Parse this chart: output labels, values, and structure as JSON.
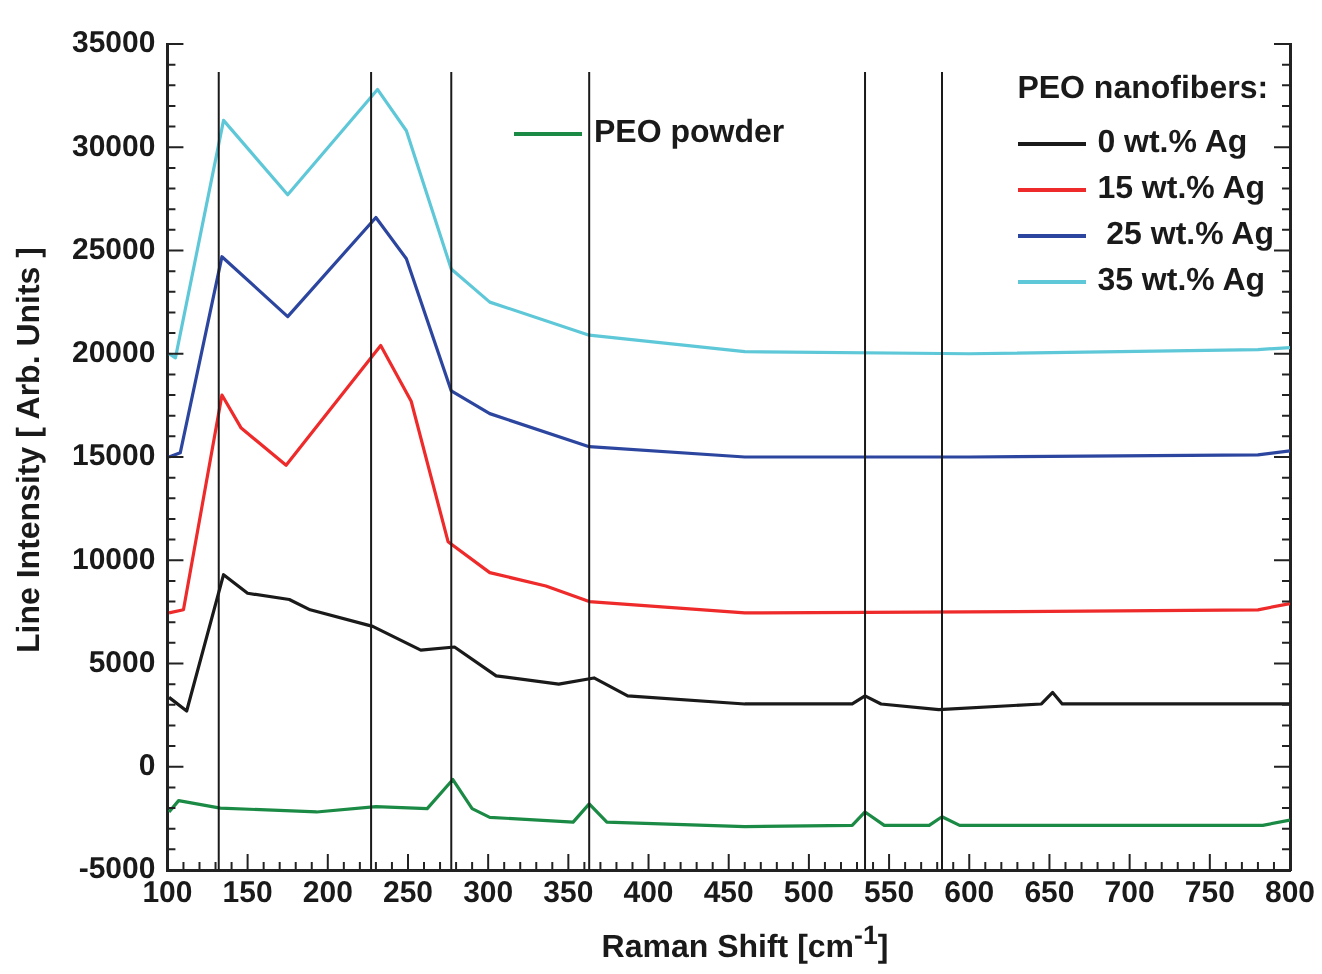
{
  "chart_data": {
    "type": "line",
    "xlabel": "Raman Shift [cm$^{-1}$]",
    "ylabel": "Line Intensity [ Arb. Units ]",
    "legend_title": "PEO nanofibers:",
    "legend": "top right",
    "grid": false,
    "marker": "none",
    "line_style": "solid",
    "xlim": [
      100,
      800
    ],
    "xticks": [
      100,
      150,
      200,
      250,
      300,
      350,
      400,
      450,
      500,
      550,
      600,
      650,
      700,
      750,
      800
    ],
    "ylim": [
      -5000,
      35000
    ],
    "yticks": [
      -5000,
      0,
      5000,
      10000,
      15000,
      20000,
      25000,
      30000,
      35000
    ],
    "series": [
      {
        "name": "PEO powder",
        "color": "#1a8a45",
        "x": [
          101,
          107,
          133,
          193,
          230,
          262,
          278,
          290,
          301,
          353,
          363,
          374,
          460,
          527,
          535,
          547,
          575,
          583,
          594,
          700,
          783,
          800
        ],
        "values": [
          -2190,
          -1640,
          -2000,
          -2190,
          -1930,
          -2030,
          -620,
          -2030,
          -2450,
          -2680,
          -1800,
          -2680,
          -2900,
          -2840,
          -2190,
          -2840,
          -2840,
          -2420,
          -2840,
          -2840,
          -2840,
          -2580
        ]
      },
      {
        "name": "0 wt.% Ag",
        "color": "#1a1a1a",
        "x": [
          101,
          112,
          135,
          150,
          176,
          189,
          228,
          258,
          279,
          305,
          344,
          366,
          387,
          460,
          527,
          535,
          545,
          581,
          645,
          652,
          658,
          800
        ],
        "values": [
          3360,
          2700,
          9300,
          8400,
          8100,
          7600,
          6800,
          5650,
          5800,
          4400,
          4000,
          4300,
          3430,
          3040,
          3040,
          3430,
          3040,
          2770,
          3040,
          3600,
          3040,
          3040
        ]
      },
      {
        "name": "15 wt.% Ag",
        "color": "#ee2a2a",
        "x": [
          101,
          110,
          134,
          146,
          174,
          233,
          252,
          275,
          301,
          336,
          363,
          460,
          600,
          780,
          800
        ],
        "values": [
          7450,
          7600,
          18000,
          16400,
          14600,
          20400,
          17700,
          10900,
          9400,
          8750,
          8000,
          7450,
          7500,
          7600,
          7900
        ]
      },
      {
        "name": " 25 wt.% Ag",
        "color": "#2c46a0",
        "x": [
          101,
          108,
          134,
          175,
          230,
          249,
          277,
          301,
          363,
          460,
          600,
          780,
          800
        ],
        "values": [
          15000,
          15200,
          24700,
          21800,
          26600,
          24600,
          18200,
          17100,
          15500,
          15000,
          15000,
          15100,
          15300
        ]
      },
      {
        "name": "35 wt.% Ag",
        "color": "#5ec8d8",
        "x": [
          101,
          105,
          135,
          175,
          231,
          249,
          277,
          301,
          363,
          460,
          600,
          780,
          800
        ],
        "values": [
          20000,
          19800,
          31300,
          27700,
          32800,
          30800,
          24100,
          22500,
          20900,
          20100,
          20000,
          20200,
          20300
        ]
      }
    ],
    "ref_lines": [
      {
        "axis": "x",
        "value": 132,
        "color": "#1a1a1a"
      },
      {
        "axis": "x",
        "value": 227,
        "color": "#1a1a1a"
      },
      {
        "axis": "x",
        "value": 277,
        "color": "#1a1a1a"
      },
      {
        "axis": "x",
        "value": 363,
        "color": "#1a1a1a"
      },
      {
        "axis": "x",
        "value": 535,
        "color": "#1a1a1a"
      },
      {
        "axis": "x",
        "value": 583,
        "color": "#1a1a1a"
      }
    ]
  }
}
